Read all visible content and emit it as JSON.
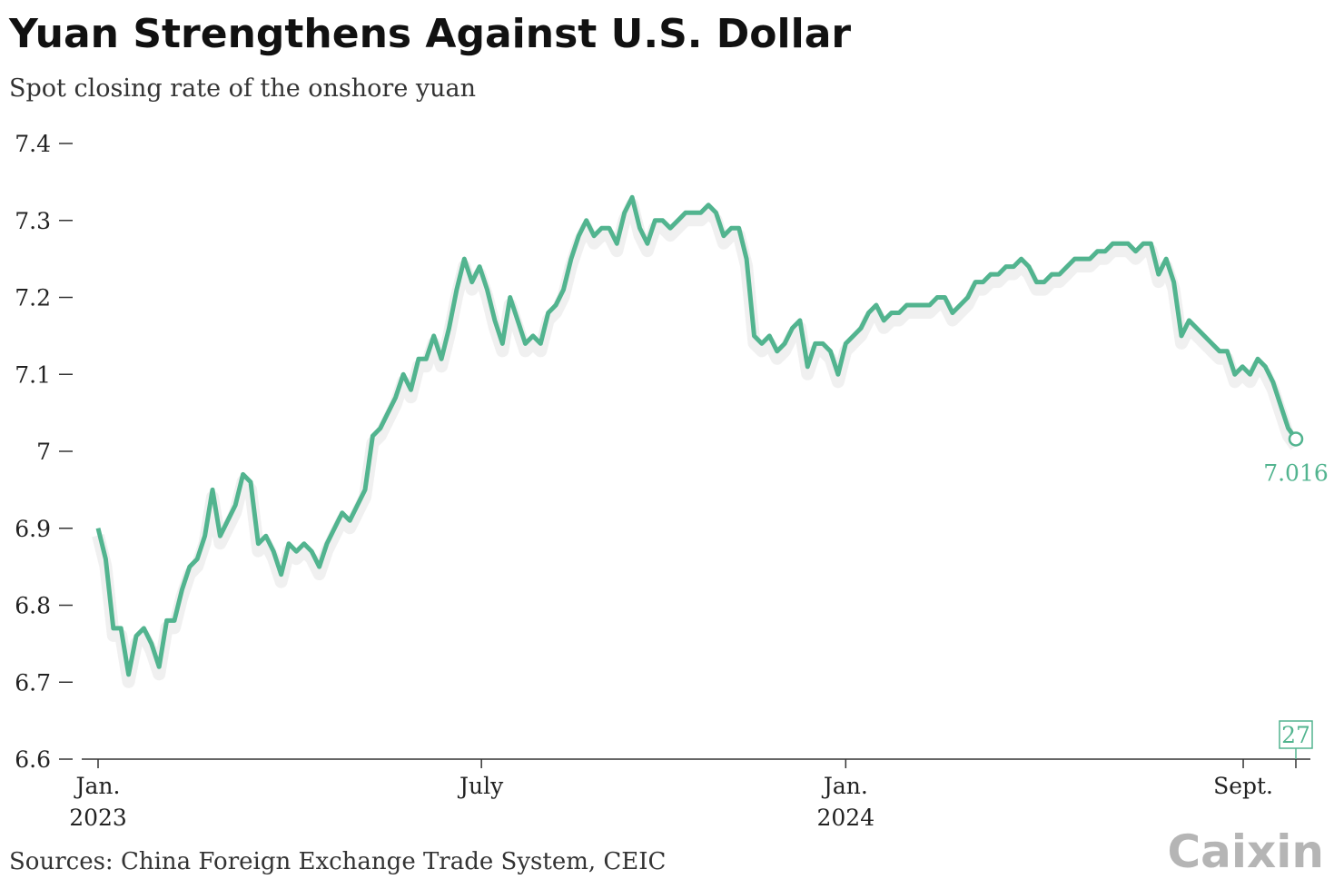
{
  "chart_data": {
    "type": "line",
    "title": "Yuan Strengthens Against U.S. Dollar",
    "subtitle": "Spot closing rate of the onshore yuan",
    "source": "Sources: China Foreign Exchange Trade System, CEIC",
    "brand": "Caixin",
    "ylim": [
      6.6,
      7.4
    ],
    "yticks": [
      6.6,
      6.7,
      6.8,
      6.9,
      7,
      7.1,
      7.2,
      7.3,
      7.4
    ],
    "xlim": [
      0,
      157
    ],
    "xticks": [
      {
        "value": 0,
        "label": "Jan.",
        "sublabel": "2023"
      },
      {
        "value": 50.25,
        "label": "July"
      },
      {
        "value": 98,
        "label": "Jan.",
        "sublabel": "2024"
      },
      {
        "value": 150.1,
        "label": "Sept."
      },
      {
        "value": 157,
        "label": "27",
        "boxed": true
      }
    ],
    "series": [
      {
        "color": "#52b48f",
        "values": [
          6.9,
          6.86,
          6.77,
          6.77,
          6.71,
          6.76,
          6.77,
          6.75,
          6.72,
          6.78,
          6.78,
          6.82,
          6.85,
          6.86,
          6.89,
          6.95,
          6.89,
          6.91,
          6.93,
          6.97,
          6.96,
          6.88,
          6.89,
          6.87,
          6.84,
          6.88,
          6.87,
          6.88,
          6.87,
          6.85,
          6.88,
          6.9,
          6.92,
          6.91,
          6.93,
          6.95,
          7.02,
          7.03,
          7.05,
          7.07,
          7.1,
          7.08,
          7.12,
          7.12,
          7.15,
          7.12,
          7.16,
          7.21,
          7.25,
          7.22,
          7.24,
          7.21,
          7.17,
          7.14,
          7.2,
          7.17,
          7.14,
          7.15,
          7.14,
          7.18,
          7.19,
          7.21,
          7.25,
          7.28,
          7.3,
          7.28,
          7.29,
          7.29,
          7.27,
          7.31,
          7.33,
          7.29,
          7.27,
          7.3,
          7.3,
          7.29,
          7.3,
          7.31,
          7.31,
          7.31,
          7.32,
          7.31,
          7.28,
          7.29,
          7.29,
          7.25,
          7.15,
          7.14,
          7.15,
          7.13,
          7.14,
          7.16,
          7.17,
          7.11,
          7.14,
          7.14,
          7.13,
          7.1,
          7.14,
          7.15,
          7.16,
          7.18,
          7.19,
          7.17,
          7.18,
          7.18,
          7.19,
          7.19,
          7.19,
          7.19,
          7.2,
          7.2,
          7.18,
          7.19,
          7.2,
          7.22,
          7.22,
          7.23,
          7.23,
          7.24,
          7.24,
          7.25,
          7.24,
          7.22,
          7.22,
          7.23,
          7.23,
          7.24,
          7.25,
          7.25,
          7.25,
          7.26,
          7.26,
          7.27,
          7.27,
          7.27,
          7.26,
          7.27,
          7.27,
          7.23,
          7.25,
          7.22,
          7.15,
          7.17,
          7.16,
          7.15,
          7.14,
          7.13,
          7.13,
          7.1,
          7.11,
          7.1,
          7.12,
          7.11,
          7.09,
          7.06,
          7.03,
          7.016
        ]
      }
    ]
  }
}
